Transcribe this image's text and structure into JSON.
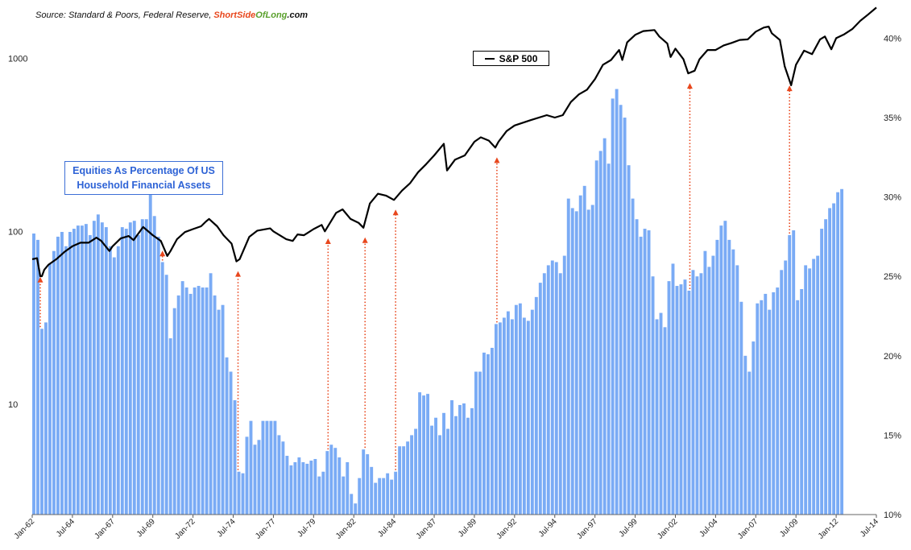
{
  "source": {
    "prefix": "Source: Standard & Poors, Federal Reserve, ",
    "brand_part1": "ShortSide",
    "brand_part2": "OfLong",
    "brand_part3": ".com"
  },
  "legend": {
    "label": "S&P 500",
    "color": "#000000"
  },
  "annotation": {
    "line1": "Equities As Percentage Of US",
    "line2": "Household Financial Assets",
    "color": "#2e63d6"
  },
  "colors": {
    "bars": "#7aabf5",
    "line": "#000000",
    "arrows": "#e8471d"
  },
  "chart_data": {
    "type": "bar+line",
    "x_tick_labels": [
      "Jan-62",
      "Jul-64",
      "Jan-67",
      "Jul-69",
      "Jan-72",
      "Jul-74",
      "Jan-77",
      "Jul-79",
      "Jan-82",
      "Jul-84",
      "Jan-87",
      "Jul-89",
      "Jan-92",
      "Jul-94",
      "Jan-97",
      "Jul-99",
      "Jan-02",
      "Jul-04",
      "Jan-07",
      "Jul-09",
      "Jan-12",
      "Jul-14"
    ],
    "x_range": [
      1962.0,
      2014.5
    ],
    "left_axis": {
      "scale": "log",
      "range": [
        2.3,
        2000
      ],
      "tick_values": [
        10,
        100,
        1000
      ],
      "tick_labels": [
        "10",
        "100",
        "1000"
      ]
    },
    "right_axis": {
      "scale": "linear",
      "range": [
        10,
        42
      ],
      "tick_values": [
        10,
        15,
        20,
        25,
        30,
        35,
        40
      ],
      "tick_labels": [
        "10%",
        "15%",
        "20%",
        "25%",
        "30%",
        "35%",
        "40%"
      ]
    },
    "grid": false,
    "legend_position": "top-center",
    "series": [
      {
        "name": "Equities As Percentage Of US Household Financial Assets",
        "kind": "bar",
        "axis": "right",
        "unit": "%",
        "start": 1962.0,
        "step": 0.25,
        "values": [
          27.7,
          27.3,
          21.7,
          22.1,
          25.8,
          26.6,
          27.5,
          27.8,
          26.9,
          27.8,
          28.0,
          28.2,
          28.2,
          28.3,
          27.6,
          28.5,
          28.9,
          28.4,
          28.1,
          26.9,
          26.2,
          26.9,
          28.1,
          28.0,
          28.4,
          28.5,
          27.6,
          28.6,
          28.6,
          30.5,
          28.8,
          27.5,
          25.9,
          25.1,
          21.1,
          23.0,
          23.8,
          24.7,
          24.3,
          23.9,
          24.3,
          24.4,
          24.3,
          24.3,
          25.2,
          23.8,
          22.9,
          23.2,
          19.9,
          19.0,
          17.2,
          12.7,
          12.6,
          14.9,
          15.9,
          14.4,
          14.7,
          15.9,
          15.9,
          15.9,
          15.9,
          15.0,
          14.6,
          13.7,
          13.1,
          13.3,
          13.6,
          13.3,
          13.2,
          13.4,
          13.5,
          12.4,
          12.7,
          14.0,
          14.4,
          14.2,
          13.6,
          12.4,
          13.3,
          11.3,
          10.7,
          12.3,
          14.1,
          13.8,
          13.0,
          12.0,
          12.3,
          12.3,
          12.6,
          12.2,
          12.7,
          14.3,
          14.3,
          14.6,
          15.0,
          15.4,
          17.7,
          17.5,
          17.6,
          15.6,
          16.1,
          15.0,
          16.4,
          15.4,
          17.2,
          16.2,
          16.9,
          17.0,
          16.1,
          16.7,
          19.0,
          19.0,
          20.2,
          20.1,
          20.5,
          22.0,
          22.1,
          22.4,
          22.8,
          22.3,
          23.2,
          23.3,
          22.4,
          22.2,
          22.9,
          23.7,
          24.6,
          25.2,
          25.7,
          26.0,
          25.9,
          25.2,
          26.3,
          29.9,
          29.3,
          29.1,
          30.1,
          30.7,
          29.2,
          29.5,
          32.3,
          32.9,
          33.7,
          32.1,
          36.2,
          36.8,
          35.8,
          35.0,
          32.0,
          29.9,
          28.6,
          27.5,
          28.0,
          27.9,
          25.0,
          22.3,
          22.7,
          21.8,
          24.7,
          25.8,
          24.4,
          24.5,
          24.8,
          24.1,
          25.4,
          25.0,
          25.2,
          26.6,
          25.6,
          26.3,
          27.3,
          28.2,
          28.5,
          27.3,
          26.7,
          25.7,
          23.4,
          20.0,
          19.0,
          20.9,
          23.3,
          23.5,
          23.9,
          22.9,
          24.0,
          24.3,
          25.4,
          26.0,
          27.6,
          27.9,
          23.5,
          24.2,
          25.7,
          25.5,
          26.1,
          26.3,
          28.0,
          28.6,
          29.3,
          29.6,
          30.3,
          30.5
        ]
      },
      {
        "name": "S&P 500",
        "kind": "line",
        "axis": "left",
        "points": [
          [
            1962.0,
            69
          ],
          [
            1962.3,
            70
          ],
          [
            1962.5,
            55
          ],
          [
            1962.6,
            55
          ],
          [
            1962.75,
            60
          ],
          [
            1963.0,
            64
          ],
          [
            1963.5,
            69
          ],
          [
            1964.0,
            76
          ],
          [
            1964.5,
            82
          ],
          [
            1965.0,
            86
          ],
          [
            1965.5,
            86
          ],
          [
            1966.0,
            92
          ],
          [
            1966.3,
            88
          ],
          [
            1966.8,
            77
          ],
          [
            1967.0,
            82
          ],
          [
            1967.5,
            91
          ],
          [
            1968.0,
            94
          ],
          [
            1968.3,
            89
          ],
          [
            1968.9,
            106
          ],
          [
            1969.5,
            95
          ],
          [
            1970.0,
            88
          ],
          [
            1970.4,
            72
          ],
          [
            1970.6,
            77
          ],
          [
            1971.0,
            90
          ],
          [
            1971.5,
            99
          ],
          [
            1972.0,
            103
          ],
          [
            1972.5,
            107
          ],
          [
            1972.8,
            114
          ],
          [
            1973.0,
            118
          ],
          [
            1973.5,
            107
          ],
          [
            1973.9,
            95
          ],
          [
            1974.4,
            85
          ],
          [
            1974.7,
            67
          ],
          [
            1974.9,
            69
          ],
          [
            1975.5,
            93
          ],
          [
            1976.0,
            101
          ],
          [
            1976.8,
            104
          ],
          [
            1977.0,
            100
          ],
          [
            1977.8,
            90
          ],
          [
            1978.2,
            88
          ],
          [
            1978.5,
            96
          ],
          [
            1978.9,
            95
          ],
          [
            1979.5,
            103
          ],
          [
            1980.0,
            109
          ],
          [
            1980.2,
            100
          ],
          [
            1980.9,
            128
          ],
          [
            1981.3,
            134
          ],
          [
            1981.8,
            118
          ],
          [
            1982.3,
            112
          ],
          [
            1982.6,
            105
          ],
          [
            1983.0,
            145
          ],
          [
            1983.5,
            165
          ],
          [
            1984.0,
            161
          ],
          [
            1984.5,
            152
          ],
          [
            1985.0,
            172
          ],
          [
            1985.5,
            190
          ],
          [
            1986.0,
            220
          ],
          [
            1986.5,
            245
          ],
          [
            1987.0,
            275
          ],
          [
            1987.6,
            321
          ],
          [
            1987.8,
            225
          ],
          [
            1988.3,
            260
          ],
          [
            1988.9,
            275
          ],
          [
            1989.5,
            330
          ],
          [
            1989.9,
            350
          ],
          [
            1990.4,
            335
          ],
          [
            1990.8,
            305
          ],
          [
            1991.0,
            330
          ],
          [
            1991.5,
            380
          ],
          [
            1992.0,
            410
          ],
          [
            1993.0,
            440
          ],
          [
            1994.0,
            470
          ],
          [
            1994.5,
            455
          ],
          [
            1995.0,
            470
          ],
          [
            1995.5,
            560
          ],
          [
            1996.0,
            620
          ],
          [
            1996.5,
            660
          ],
          [
            1997.0,
            760
          ],
          [
            1997.5,
            920
          ],
          [
            1998.0,
            980
          ],
          [
            1998.5,
            1120
          ],
          [
            1998.7,
            980
          ],
          [
            1999.0,
            1240
          ],
          [
            1999.5,
            1370
          ],
          [
            2000.0,
            1440
          ],
          [
            2000.7,
            1460
          ],
          [
            2001.0,
            1340
          ],
          [
            2001.5,
            1220
          ],
          [
            2001.7,
            1020
          ],
          [
            2002.0,
            1140
          ],
          [
            2002.5,
            990
          ],
          [
            2002.8,
            820
          ],
          [
            2003.2,
            850
          ],
          [
            2003.5,
            990
          ],
          [
            2004.0,
            1120
          ],
          [
            2004.5,
            1120
          ],
          [
            2005.0,
            1190
          ],
          [
            2005.5,
            1230
          ],
          [
            2006.0,
            1280
          ],
          [
            2006.5,
            1290
          ],
          [
            2007.0,
            1430
          ],
          [
            2007.5,
            1510
          ],
          [
            2007.8,
            1530
          ],
          [
            2008.0,
            1400
          ],
          [
            2008.5,
            1280
          ],
          [
            2008.8,
            900
          ],
          [
            2009.2,
            700
          ],
          [
            2009.5,
            920
          ],
          [
            2010.0,
            1110
          ],
          [
            2010.5,
            1060
          ],
          [
            2011.0,
            1290
          ],
          [
            2011.3,
            1340
          ],
          [
            2011.7,
            1130
          ],
          [
            2012.0,
            1310
          ],
          [
            2012.5,
            1380
          ],
          [
            2013.0,
            1480
          ],
          [
            2013.5,
            1650
          ],
          [
            2014.0,
            1800
          ],
          [
            2014.5,
            1970
          ]
        ]
      }
    ],
    "arrow_x": [
      1962.4,
      1970.0,
      1974.7,
      1980.3,
      1982.6,
      1984.5,
      1990.8,
      2002.8,
      2009.0
    ]
  }
}
